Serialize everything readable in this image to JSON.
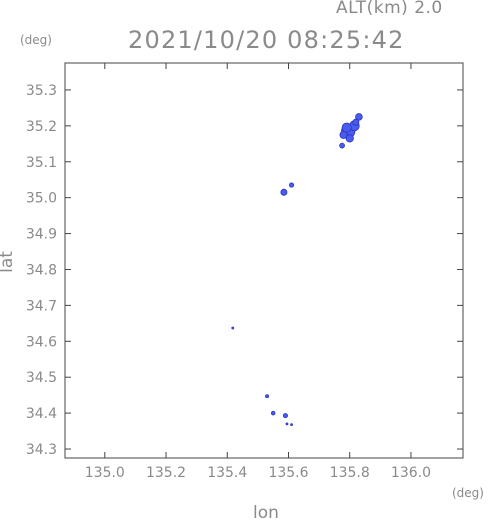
{
  "header": {
    "alt_label": "ALT(km) 2.0",
    "timestamp": "2021/10/20 08:25:42",
    "y_unit": "(deg)",
    "x_unit": "(deg)"
  },
  "colors": {
    "frame": "#444444",
    "text": "#8a8a8a",
    "echo_fill": "#4a5cf0",
    "echo_edge": "#2a35b8"
  },
  "chart_data": {
    "type": "scatter",
    "xlabel": "lon",
    "ylabel": "lat",
    "xlim": [
      134.87,
      136.17
    ],
    "ylim": [
      34.275,
      35.375
    ],
    "xticks": [
      135.0,
      135.2,
      135.4,
      135.6,
      135.8,
      136.0
    ],
    "yticks": [
      34.3,
      34.4,
      34.5,
      34.6,
      34.7,
      34.8,
      34.9,
      35.0,
      35.1,
      35.2,
      35.3
    ],
    "xtick_labels": [
      "135.0",
      "135.2",
      "135.4",
      "135.6",
      "135.8",
      "136.0"
    ],
    "ytick_labels": [
      "34.3",
      "34.4",
      "34.5",
      "34.6",
      "34.7",
      "34.8",
      "34.9",
      "35.0",
      "35.1",
      "35.2",
      "35.3"
    ],
    "grid": false,
    "points": [
      {
        "lon": 135.795,
        "lat": 35.185,
        "r": 0.022
      },
      {
        "lon": 135.815,
        "lat": 35.2,
        "r": 0.016
      },
      {
        "lon": 135.78,
        "lat": 35.175,
        "r": 0.012
      },
      {
        "lon": 135.8,
        "lat": 35.165,
        "r": 0.012
      },
      {
        "lon": 135.83,
        "lat": 35.225,
        "r": 0.011
      },
      {
        "lon": 135.82,
        "lat": 35.21,
        "r": 0.01
      },
      {
        "lon": 135.775,
        "lat": 35.145,
        "r": 0.008
      },
      {
        "lon": 135.79,
        "lat": 35.195,
        "r": 0.015
      },
      {
        "lon": 135.585,
        "lat": 35.015,
        "r": 0.01
      },
      {
        "lon": 135.61,
        "lat": 35.035,
        "r": 0.007
      },
      {
        "lon": 135.418,
        "lat": 34.637,
        "r": 0.002
      },
      {
        "lon": 135.53,
        "lat": 34.447,
        "r": 0.005
      },
      {
        "lon": 135.55,
        "lat": 34.4,
        "r": 0.006
      },
      {
        "lon": 135.59,
        "lat": 34.393,
        "r": 0.007
      },
      {
        "lon": 135.595,
        "lat": 34.37,
        "r": 0.002
      },
      {
        "lon": 135.61,
        "lat": 34.368,
        "r": 0.002
      }
    ]
  }
}
